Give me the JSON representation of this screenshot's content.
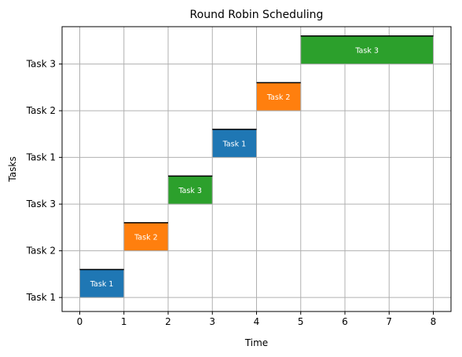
{
  "chart_data": {
    "type": "bar",
    "subtype": "gantt",
    "title": "Round Robin Scheduling",
    "xlabel": "Time",
    "ylabel": "Tasks",
    "xlim": [
      -0.4,
      8.4
    ],
    "xticks": [
      0,
      1,
      2,
      3,
      4,
      5,
      6,
      7,
      8
    ],
    "ylim": [
      -0.3,
      5.8
    ],
    "yticks": [
      0,
      1,
      2,
      3,
      4,
      5
    ],
    "ytick_labels": [
      "Task 1",
      "Task 2",
      "Task 3",
      "Task 1",
      "Task 2",
      "Task 3"
    ],
    "grid": true,
    "bars": [
      {
        "label": "Task 1",
        "start": 0,
        "end": 1,
        "row": 0,
        "color": "#1f77b4"
      },
      {
        "label": "Task 2",
        "start": 1,
        "end": 2,
        "row": 1,
        "color": "#ff7f0e"
      },
      {
        "label": "Task 3",
        "start": 2,
        "end": 3,
        "row": 2,
        "color": "#2ca02c"
      },
      {
        "label": "Task 1",
        "start": 3,
        "end": 4,
        "row": 3,
        "color": "#1f77b4"
      },
      {
        "label": "Task 2",
        "start": 4,
        "end": 5,
        "row": 4,
        "color": "#ff7f0e"
      },
      {
        "label": "Task 3",
        "start": 5,
        "end": 8,
        "row": 5,
        "color": "#2ca02c"
      }
    ],
    "bar_height": 0.6
  }
}
